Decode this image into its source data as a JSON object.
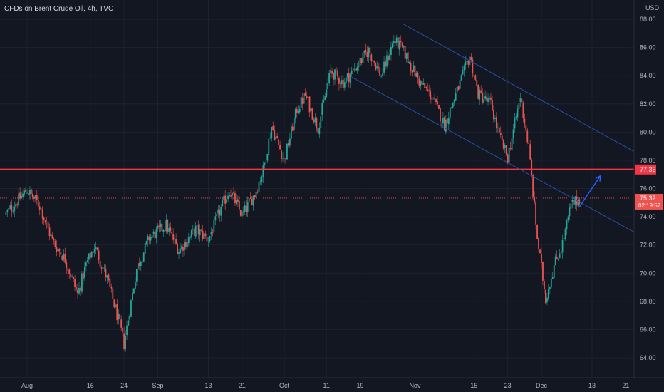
{
  "header": {
    "title": "CFDs on Brent Crude Oil, 4h, TVC",
    "currency": "USD"
  },
  "price_tags": {
    "resistance": "77.35",
    "last_price": "75.32",
    "countdown": "02:19:57"
  },
  "colors": {
    "background": "#131722",
    "grid": "#1e2230",
    "up": "#26a69a",
    "down": "#ef5350",
    "resistance_line": "#f23645",
    "channel": "#2a4fa8",
    "arrow": "#2962ff",
    "axis_text": "#b2b5be"
  },
  "chart_data": {
    "type": "candlestick",
    "title": "CFDs on Brent Crude Oil, 4h, TVC",
    "x_ticks": [
      "Aug",
      "16",
      "24",
      "Sep",
      "13",
      "21",
      "Oct",
      "11",
      "19",
      "Nov",
      "15",
      "23",
      "Dec",
      "13",
      "21"
    ],
    "y_ticks": [
      "88.00",
      "86.00",
      "84.00",
      "82.00",
      "80.00",
      "78.00",
      "76.00",
      "74.00",
      "72.00",
      "70.00",
      "68.00",
      "66.00",
      "64.00"
    ],
    "ylim": [
      63.0,
      89.0
    ],
    "resistance_level": 77.35,
    "last_price": 75.32,
    "price_path": [
      [
        "Jul 27",
        74.2
      ],
      [
        "Aug 1",
        75.9
      ],
      [
        "Aug 4",
        74.8
      ],
      [
        "Aug 7",
        72.3
      ],
      [
        "Aug 10",
        71.0
      ],
      [
        "Aug 13",
        68.5
      ],
      [
        "Aug 15",
        70.6
      ],
      [
        "Aug 17",
        71.9
      ],
      [
        "Aug 20",
        69.6
      ],
      [
        "Aug 23",
        66.3
      ],
      [
        "Aug 24",
        65.0
      ],
      [
        "Aug 27",
        70.3
      ],
      [
        "Aug 30",
        72.5
      ],
      [
        "Sep 3",
        73.4
      ],
      [
        "Sep 6",
        71.6
      ],
      [
        "Sep 10",
        73.1
      ],
      [
        "Sep 13",
        72.4
      ],
      [
        "Sep 16",
        74.6
      ],
      [
        "Sep 18",
        75.9
      ],
      [
        "Sep 21",
        74.1
      ],
      [
        "Sep 24",
        75.6
      ],
      [
        "Sep 26",
        77.3
      ],
      [
        "Sep 28",
        80.4
      ],
      [
        "Oct 1",
        78.0
      ],
      [
        "Oct 4",
        81.6
      ],
      [
        "Oct 6",
        82.6
      ],
      [
        "Oct 9",
        80.3
      ],
      [
        "Oct 12",
        84.3
      ],
      [
        "Oct 15",
        83.5
      ],
      [
        "Oct 18",
        84.6
      ],
      [
        "Oct 21",
        85.8
      ],
      [
        "Oct 24",
        84.0
      ],
      [
        "Oct 27",
        86.5
      ],
      [
        "Oct 29",
        85.9
      ],
      [
        "Nov 2",
        83.6
      ],
      [
        "Nov 5",
        82.5
      ],
      [
        "Nov 8",
        80.5
      ],
      [
        "Nov 11",
        82.9
      ],
      [
        "Nov 14",
        85.4
      ],
      [
        "Nov 16",
        82.7
      ],
      [
        "Nov 19",
        82.0
      ],
      [
        "Nov 21",
        79.7
      ],
      [
        "Nov 23",
        78.2
      ],
      [
        "Nov 26",
        82.5
      ],
      [
        "Nov 28",
        78.9
      ],
      [
        "Nov 30",
        72.5
      ],
      [
        "Dec 2",
        68.2
      ],
      [
        "Dec 4",
        70.5
      ],
      [
        "Dec 6",
        72.1
      ],
      [
        "Dec 8",
        74.8
      ],
      [
        "Dec 10",
        75.3
      ]
    ],
    "annotations": {
      "resistance_line": 77.35,
      "descending_channel": {
        "upper": [
          [
            "Oct 29",
            87.7
          ],
          [
            "Dec 31",
            77.3
          ]
        ],
        "lower": [
          [
            "Oct 17",
            83.9
          ],
          [
            "Dec 31",
            71.6
          ]
        ]
      },
      "projection_arrow": {
        "from": [
          "Dec 10",
          74.7
        ],
        "to": [
          "Dec 15",
          76.9
        ]
      }
    },
    "grid": true
  }
}
